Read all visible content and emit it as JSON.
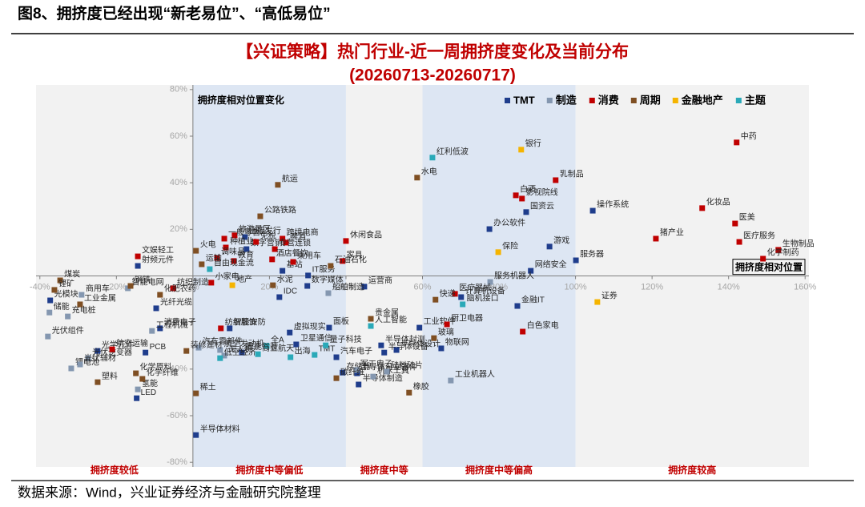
{
  "page_title": "图8、拥挤度已经出现“新老易位”、“高低易位”",
  "source": "数据来源：Wind，兴业证券经济与金融研究院整理",
  "chart_data": {
    "type": "scatter",
    "title": "【兴证策略】热门行业-近一周拥挤度变化及当前分布",
    "subtitle": "(20260713-20260717)",
    "y_label": "拥挤度相对位置变化",
    "x_label": "拥挤度相对位置",
    "xlim": [
      -41,
      161
    ],
    "ylim": [
      -82,
      82
    ],
    "xticks": [
      {
        "value": -40,
        "label": "-40%"
      },
      {
        "value": -20,
        "label": "-20%"
      },
      {
        "value": 0,
        "label": "0%"
      },
      {
        "value": 20,
        "label": "20%"
      },
      {
        "value": 40,
        "label": "40%"
      },
      {
        "value": 60,
        "label": "60%"
      },
      {
        "value": 80,
        "label": "80%"
      },
      {
        "value": 100,
        "label": "100%"
      },
      {
        "value": 120,
        "label": "120%"
      },
      {
        "value": 140,
        "label": "140%"
      },
      {
        "value": 160,
        "label": "160%"
      }
    ],
    "yticks": [
      {
        "value": -80,
        "label": "-80%"
      },
      {
        "value": -60,
        "label": "-60%"
      },
      {
        "value": -40,
        "label": "-40%"
      },
      {
        "value": -20,
        "label": "-20%"
      },
      {
        "value": 20,
        "label": "20%"
      },
      {
        "value": 40,
        "label": "40%"
      },
      {
        "value": 60,
        "label": "60%"
      },
      {
        "value": 80,
        "label": "80%"
      }
    ],
    "legend": "top-right",
    "zones": [
      {
        "label": "拥挤度较低",
        "from": -41,
        "to": 0,
        "color": "#f2f2f2"
      },
      {
        "label": "拥挤度中等偏低",
        "from": 0,
        "to": 40,
        "color": "#dde6f3"
      },
      {
        "label": "拥挤度中等",
        "from": 40,
        "to": 60,
        "color": "#f2f2f2"
      },
      {
        "label": "拥挤度中等偏高",
        "from": 60,
        "to": 100,
        "color": "#dde6f3"
      },
      {
        "label": "拥挤度较高",
        "from": 100,
        "to": 161,
        "color": "#f2f2f2"
      }
    ],
    "series": [
      {
        "name": "TMT",
        "color": "#1f3d8c",
        "labels": [
          "出版发行",
          "数字营销",
          "基站",
          "IT服务",
          "射频元件",
          "操作系统",
          "国资云",
          "办公软件",
          "游戏",
          "服务器",
          "网络安全",
          "数字媒体",
          "IDC",
          "运营商",
          "计算机设备",
          "金融IT",
          "工业软件",
          "面板",
          "虚拟现实",
          "卫星通信",
          "智能安防",
          "智能驾驶",
          "汽车电子",
          "存储器",
          "半导体封测",
          "半导体设备",
          "半导体设计",
          "半导体分立器件",
          "半导体制造",
          "半导体材料",
          "物联网",
          "光模块",
          "光纤光缆",
          "消费电子",
          "光学元件",
          "PCB",
          "LED"
        ],
        "x": [
          13.6,
          14.0,
          23.4,
          30.1,
          -14.4,
          104.5,
          87.1,
          77.5,
          93.2,
          100.1,
          88.3,
          29.9,
          22.6,
          44.8,
          70.1,
          84.8,
          59.2,
          35.6,
          25.3,
          27.0,
          9.6,
          12.8,
          37.5,
          39.1,
          49.2,
          50.0,
          53.2,
          42.9,
          43.3,
          0.8,
          64.9,
          -37.3,
          -9.6,
          -8.6,
          -24.9,
          -12.4,
          -14.7
        ],
        "y": [
          16.7,
          11.5,
          2.2,
          0.2,
          4.3,
          28.0,
          27.4,
          20.1,
          12.6,
          6.7,
          2.2,
          -4.3,
          -9.1,
          -4.6,
          -9.1,
          -12.9,
          -22.2,
          -22.2,
          -24.3,
          -29.4,
          -22.5,
          -32.9,
          -34.9,
          -41.5,
          -29.8,
          -32.9,
          -31.8,
          -41.8,
          -46.6,
          -68.3,
          -31.1,
          -10.5,
          -13.9,
          -22.5,
          -32.2,
          -32.9,
          -52.5
        ]
      },
      {
        "name": "制造",
        "color": "#8497b0",
        "labels": [
          "服务机器人",
          "工业机器人",
          "船舶制造",
          "航空发动机",
          "汽车零部件",
          "无人机",
          "军工电子",
          "机床工具",
          "硅料硅片",
          "智能电网",
          "储能",
          "充电桩",
          "工程机械",
          "光伏组件",
          "光伏逆变器",
          "锂电池",
          "光伏辅材",
          "氢能",
          "商用车"
        ],
        "x": [
          77.7,
          67.4,
          35.4,
          7.1,
          1.5,
          8.2,
          42.7,
          47.1,
          50.7,
          -17.0,
          -37.5,
          -32.7,
          -10.7,
          -37.9,
          -27.4,
          -31.8,
          -29.5,
          -14.4,
          -29.1
        ],
        "y": [
          -2.6,
          -44.9,
          -7.4,
          -31.8,
          -30.8,
          -34.2,
          -40.4,
          -43.2,
          -41.1,
          -5.3,
          -15.7,
          -17.4,
          -23.6,
          -26.0,
          -35.3,
          -39.7,
          -38.0,
          -48.7,
          -8.1
        ]
      },
      {
        "name": "消费",
        "color": "#c00000",
        "labels": [
          "中药",
          "乳制品",
          "白酒",
          "影视院线",
          "化妆品",
          "医美",
          "猪产业",
          "医疗服务",
          "生物制品",
          "化学制药",
          "文娱轻工",
          "旅游景区",
          "一般零售",
          "免税",
          "跨境电商",
          "啤酒",
          "休闲食品",
          "种植业",
          "专营连锁",
          "调味品",
          "教育",
          "酒店餐饮",
          "乘用车",
          "家具",
          "小家电",
          "纺织制造",
          "纺织服饰",
          "医疗器械",
          "厨卫电器",
          "白色家电",
          "航空运输"
        ],
        "x": [
          142.1,
          94.8,
          84.4,
          86.0,
          133.1,
          141.7,
          121.0,
          142.8,
          153.0,
          149.0,
          -14.4,
          10.9,
          8.2,
          16.5,
          23.4,
          24.3,
          40.0,
          8.6,
          21.4,
          6.3,
          10.7,
          20.7,
          26.2,
          39.1,
          4.8,
          -5.2,
          7.3,
          68.5,
          66.4,
          86.2,
          -21.1
        ],
        "y": [
          57.3,
          41.1,
          34.6,
          33.2,
          29.1,
          22.5,
          16.0,
          14.6,
          11.2,
          7.4,
          8.4,
          17.4,
          16.0,
          14.6,
          16.0,
          14.3,
          15.0,
          12.2,
          11.5,
          7.7,
          6.4,
          7.1,
          6.0,
          6.4,
          -2.9,
          -5.3,
          -22.5,
          -7.7,
          -20.8,
          -23.9,
          -31.5
        ]
      },
      {
        "name": "周期",
        "color": "#7f4f23",
        "labels": [
          "航运",
          "水电",
          "公路铁路",
          "火电",
          "石油石化",
          "运输",
          "煤炭",
          "锂矿",
          "钢铁",
          "工业金属",
          "化肥农药",
          "水泥",
          "贵金属",
          "快递",
          "玻璃",
          "橡胶",
          "碳纤维",
          "装修建材",
          "化学原料",
          "化学纤维",
          "塑料",
          "稀土"
        ],
        "x": [
          22.2,
          58.6,
          17.6,
          0.8,
          36.0,
          2.3,
          -34.7,
          -36.2,
          -16.3,
          -29.5,
          -8.6,
          20.9,
          46.5,
          63.4,
          63.0,
          56.5,
          37.5,
          -1.7,
          -14.9,
          -13.2,
          -24.9,
          0.8
        ],
        "y": [
          39.1,
          42.2,
          25.6,
          10.8,
          4.3,
          5.0,
          -1.9,
          -6.0,
          -4.3,
          -12.2,
          -8.1,
          -4.0,
          -18.4,
          -10.2,
          -26.7,
          -50.1,
          -43.9,
          -32.2,
          -41.8,
          -44.2,
          -45.6,
          -50.4
        ]
      },
      {
        "name": "金融地产",
        "color": "#f5b400",
        "labels": [
          "银行",
          "保险",
          "地产",
          "证券"
        ],
        "x": [
          85.8,
          79.8,
          10.3,
          105.7
        ],
        "y": [
          54.2,
          10.2,
          -4.0,
          -11.2
        ]
      },
      {
        "name": "主题",
        "color": "#2aa9b8",
        "labels": [
          "红利低波",
          "自由现金流",
          "低空经济",
          "全A",
          "商业航天",
          "出海",
          "TMT",
          "量子科技",
          "人工智能",
          "脑机接口"
        ],
        "x": [
          62.6,
          4.4,
          7.1,
          19.3,
          17.0,
          25.5,
          31.8,
          34.7,
          46.5,
          70.5
        ],
        "y": [
          50.8,
          2.9,
          -35.3,
          -30.1,
          -33.6,
          -34.9,
          -33.9,
          -29.8,
          -21.5,
          -12.2
        ]
      }
    ]
  }
}
